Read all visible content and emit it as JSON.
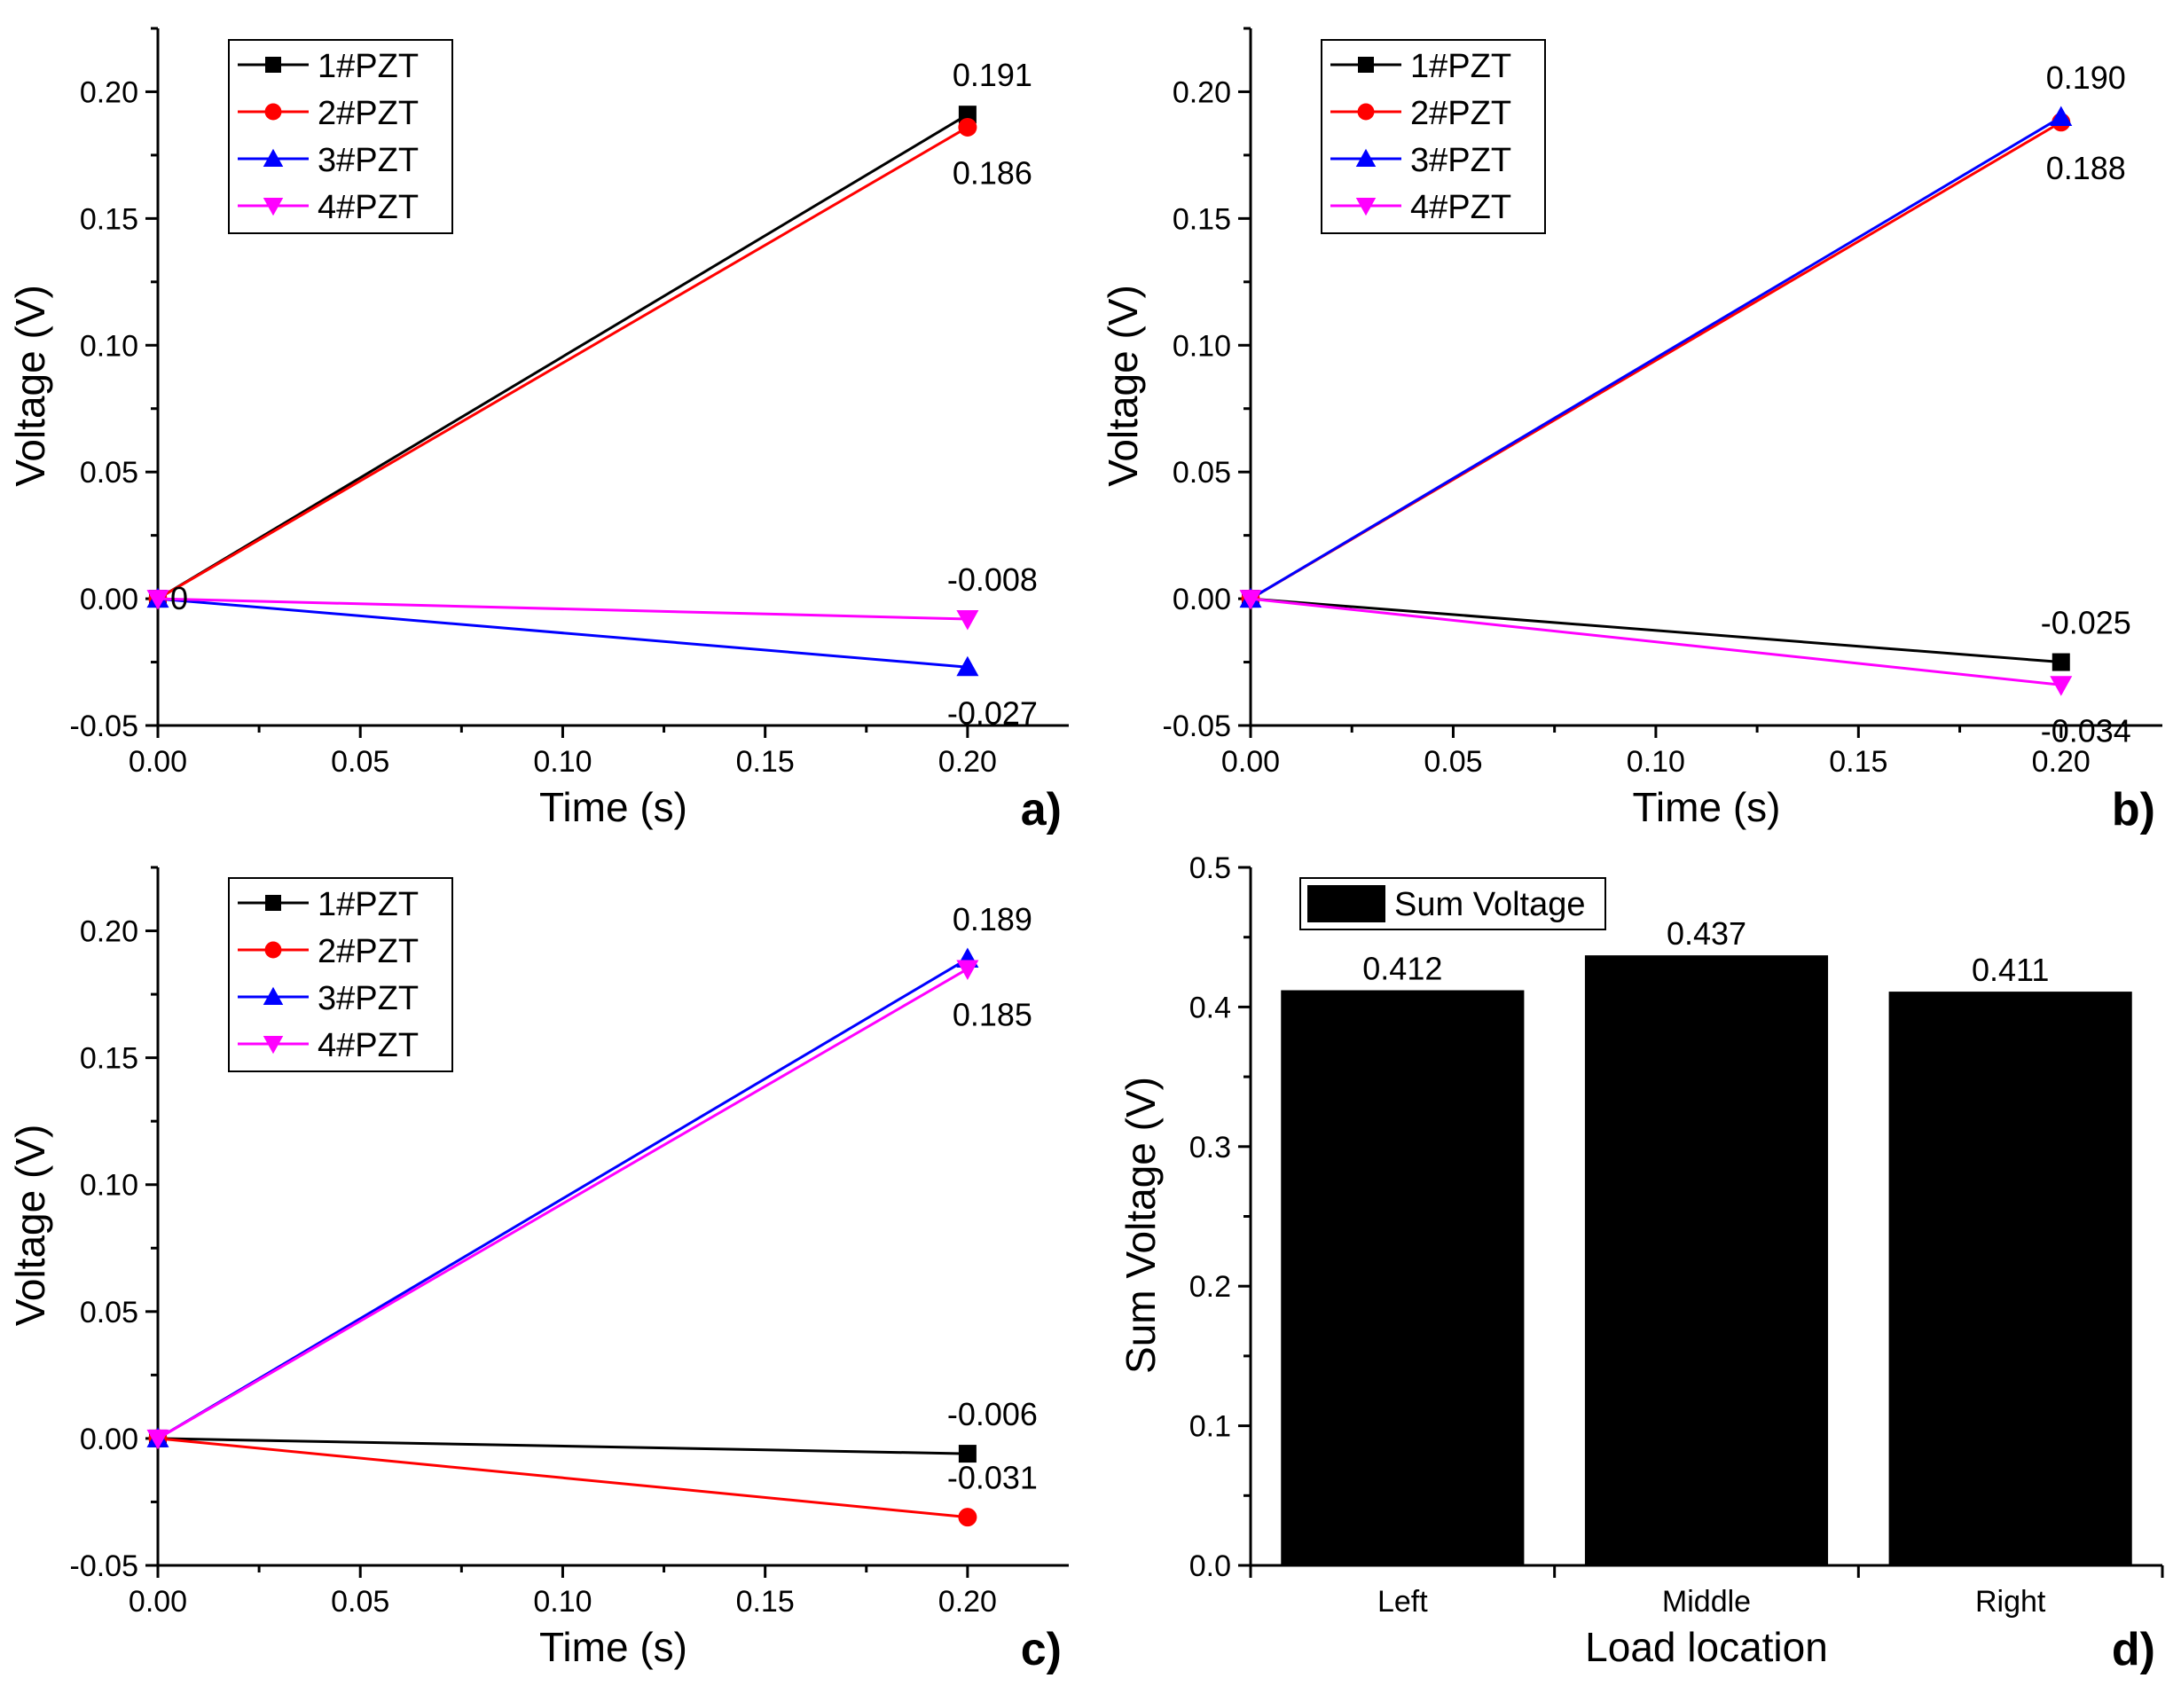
{
  "chart_data": [
    {
      "type": "line",
      "panel_label": "a)",
      "xlabel": "Time (s)",
      "ylabel": "Voltage (V)",
      "xlim": [
        0.0,
        0.225
      ],
      "ylim": [
        -0.05,
        0.225
      ],
      "xticks": [
        "0.00",
        "0.05",
        "0.10",
        "0.15",
        "0.20"
      ],
      "yticks": [
        "-0.05",
        "0.00",
        "0.05",
        "0.10",
        "0.15",
        "0.20"
      ],
      "legend": "top-left",
      "grid": false,
      "series": [
        {
          "name": "1#PZT",
          "color": "#000000",
          "marker": "square",
          "x": [
            0.0,
            0.2
          ],
          "y": [
            0.0,
            0.191
          ]
        },
        {
          "name": "2#PZT",
          "color": "#ff0000",
          "marker": "circle",
          "x": [
            0.0,
            0.2
          ],
          "y": [
            0.0,
            0.186
          ]
        },
        {
          "name": "3#PZT",
          "color": "#0000ff",
          "marker": "triangle-up",
          "x": [
            0.0,
            0.2
          ],
          "y": [
            0.0,
            -0.027
          ]
        },
        {
          "name": "4#PZT",
          "color": "#ff00ff",
          "marker": "triangle-down",
          "x": [
            0.0,
            0.2
          ],
          "y": [
            0.0,
            -0.008
          ]
        }
      ],
      "annotations": [
        {
          "text": "0.191",
          "x": 0.2,
          "y": 0.191,
          "pos": "above"
        },
        {
          "text": "0.186",
          "x": 0.2,
          "y": 0.186,
          "pos": "below"
        },
        {
          "text": "-0.008",
          "x": 0.2,
          "y": -0.008,
          "pos": "above"
        },
        {
          "text": "-0.027",
          "x": 0.2,
          "y": -0.027,
          "pos": "below"
        },
        {
          "text": "0",
          "x": 0.0,
          "y": 0.0,
          "pos": "right"
        }
      ]
    },
    {
      "type": "line",
      "panel_label": "b)",
      "xlabel": "Time (s)",
      "ylabel": "Voltage (V)",
      "xlim": [
        0.0,
        0.225
      ],
      "ylim": [
        -0.05,
        0.225
      ],
      "xticks": [
        "0.00",
        "0.05",
        "0.10",
        "0.15",
        "0.20"
      ],
      "yticks": [
        "-0.05",
        "0.00",
        "0.05",
        "0.10",
        "0.15",
        "0.20"
      ],
      "legend": "top-left",
      "grid": false,
      "series": [
        {
          "name": "1#PZT",
          "color": "#000000",
          "marker": "square",
          "x": [
            0.0,
            0.2
          ],
          "y": [
            0.0,
            -0.025
          ]
        },
        {
          "name": "2#PZT",
          "color": "#ff0000",
          "marker": "circle",
          "x": [
            0.0,
            0.2
          ],
          "y": [
            0.0,
            0.188
          ]
        },
        {
          "name": "3#PZT",
          "color": "#0000ff",
          "marker": "triangle-up",
          "x": [
            0.0,
            0.2
          ],
          "y": [
            0.0,
            0.19
          ]
        },
        {
          "name": "4#PZT",
          "color": "#ff00ff",
          "marker": "triangle-down",
          "x": [
            0.0,
            0.2
          ],
          "y": [
            0.0,
            -0.034
          ]
        }
      ],
      "annotations": [
        {
          "text": "0.190",
          "x": 0.2,
          "y": 0.19,
          "pos": "above"
        },
        {
          "text": "0.188",
          "x": 0.2,
          "y": 0.188,
          "pos": "below"
        },
        {
          "text": "-0.025",
          "x": 0.2,
          "y": -0.025,
          "pos": "above"
        },
        {
          "text": "-0.034",
          "x": 0.2,
          "y": -0.034,
          "pos": "below"
        }
      ]
    },
    {
      "type": "line",
      "panel_label": "c)",
      "xlabel": "Time (s)",
      "ylabel": "Voltage (V)",
      "xlim": [
        0.0,
        0.225
      ],
      "ylim": [
        -0.05,
        0.225
      ],
      "xticks": [
        "0.00",
        "0.05",
        "0.10",
        "0.15",
        "0.20"
      ],
      "yticks": [
        "-0.05",
        "0.00",
        "0.05",
        "0.10",
        "0.15",
        "0.20"
      ],
      "legend": "top-left",
      "grid": false,
      "series": [
        {
          "name": "1#PZT",
          "color": "#000000",
          "marker": "square",
          "x": [
            0.0,
            0.2
          ],
          "y": [
            0.0,
            -0.006
          ]
        },
        {
          "name": "2#PZT",
          "color": "#ff0000",
          "marker": "circle",
          "x": [
            0.0,
            0.2
          ],
          "y": [
            0.0,
            -0.031
          ]
        },
        {
          "name": "3#PZT",
          "color": "#0000ff",
          "marker": "triangle-up",
          "x": [
            0.0,
            0.2
          ],
          "y": [
            0.0,
            0.189
          ]
        },
        {
          "name": "4#PZT",
          "color": "#ff00ff",
          "marker": "triangle-down",
          "x": [
            0.0,
            0.2
          ],
          "y": [
            0.0,
            0.185
          ]
        }
      ],
      "annotations": [
        {
          "text": "0.189",
          "x": 0.2,
          "y": 0.189,
          "pos": "above"
        },
        {
          "text": "0.185",
          "x": 0.2,
          "y": 0.185,
          "pos": "below"
        },
        {
          "text": "-0.006",
          "x": 0.2,
          "y": -0.006,
          "pos": "above"
        },
        {
          "text": "-0.031",
          "x": 0.2,
          "y": -0.031,
          "pos": "above"
        }
      ]
    },
    {
      "type": "bar",
      "panel_label": "d)",
      "xlabel": "Load location",
      "ylabel": "Sum Voltage (V)",
      "categories": [
        "Left",
        "Middle",
        "Right"
      ],
      "ylim": [
        0.0,
        0.5
      ],
      "yticks": [
        "0.0",
        "0.1",
        "0.2",
        "0.3",
        "0.4",
        "0.5"
      ],
      "legend": "top-left",
      "grid": false,
      "series": [
        {
          "name": "Sum Voltage",
          "color": "#000000",
          "values": [
            0.412,
            0.437,
            0.411
          ]
        }
      ],
      "value_labels": [
        "0.412",
        "0.437",
        "0.411"
      ]
    }
  ]
}
